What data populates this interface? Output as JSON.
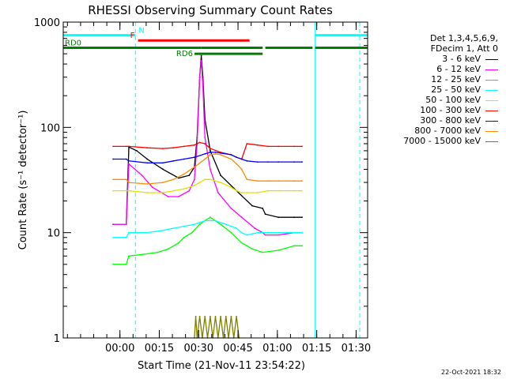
{
  "chart_data": {
    "type": "line",
    "title": "RHESSI Observing Summary Count Rates",
    "xlabel": "Start Time (21-Nov-11 23:54:22)",
    "ylabel": "Count Rate (s⁻¹ detector⁻¹)",
    "y_scale": "log",
    "ylim": [
      1,
      1000
    ],
    "y_ticks": [
      {
        "value": 1,
        "label": "1"
      },
      {
        "value": 10,
        "label": "10"
      },
      {
        "value": 100,
        "label": "100"
      },
      {
        "value": 1000,
        "label": "1000"
      }
    ],
    "xlim_minutes": [
      -16,
      100
    ],
    "x_ticks": [
      {
        "minute": 5.6,
        "label": "00:00"
      },
      {
        "minute": 20.6,
        "label": "00:15"
      },
      {
        "minute": 35.6,
        "label": "00:30"
      },
      {
        "minute": 50.6,
        "label": "00:45"
      },
      {
        "minute": 65.6,
        "label": "01:00"
      },
      {
        "minute": 80.6,
        "label": "01:15"
      },
      {
        "minute": 95.6,
        "label": "01:30"
      }
    ],
    "legend_header": [
      "Det 1,3,4,5,6,9,",
      "FDecim 1, Att 0"
    ],
    "series": [
      {
        "name": "3 - 6 keV",
        "color": "#000000",
        "points": [
          [
            3,
            12
          ],
          [
            8,
            12
          ],
          [
            9,
            65
          ],
          [
            12,
            60
          ],
          [
            16,
            50
          ],
          [
            22,
            40
          ],
          [
            28,
            33
          ],
          [
            32,
            35
          ],
          [
            34,
            42
          ],
          [
            35,
            80
          ],
          [
            36,
            300
          ],
          [
            36.6,
            480
          ],
          [
            37.2,
            300
          ],
          [
            38,
            120
          ],
          [
            40,
            60
          ],
          [
            44,
            35
          ],
          [
            50,
            25
          ],
          [
            56,
            18
          ],
          [
            60,
            17
          ],
          [
            61,
            15
          ],
          [
            66,
            14
          ],
          [
            72,
            14
          ],
          [
            75,
            14
          ]
        ]
      },
      {
        "name": "6 - 12 keV",
        "color": "#ff00ff",
        "points": [
          [
            3,
            12
          ],
          [
            8,
            12
          ],
          [
            9,
            45
          ],
          [
            14,
            35
          ],
          [
            18,
            27
          ],
          [
            24,
            22
          ],
          [
            28,
            22
          ],
          [
            32,
            25
          ],
          [
            34,
            32
          ],
          [
            35,
            70
          ],
          [
            36,
            300
          ],
          [
            36.6,
            430
          ],
          [
            37.2,
            250
          ],
          [
            38,
            80
          ],
          [
            40,
            40
          ],
          [
            43,
            24
          ],
          [
            48,
            17
          ],
          [
            52,
            14
          ],
          [
            57,
            11
          ],
          [
            60,
            10
          ],
          [
            61,
            9.5
          ],
          [
            66,
            9.5
          ],
          [
            72,
            10
          ],
          [
            75,
            10
          ]
        ]
      },
      {
        "name": "12 - 25 keV",
        "color": "#00ff00",
        "points": [
          [
            3,
            5
          ],
          [
            8,
            5
          ],
          [
            9,
            6
          ],
          [
            14,
            6.2
          ],
          [
            20,
            6.5
          ],
          [
            24,
            7
          ],
          [
            28,
            8
          ],
          [
            30,
            9
          ],
          [
            33,
            10
          ],
          [
            36,
            12
          ],
          [
            38,
            13
          ],
          [
            40,
            14
          ],
          [
            44,
            12
          ],
          [
            48,
            10
          ],
          [
            52,
            8
          ],
          [
            54,
            7.5
          ],
          [
            56,
            7
          ],
          [
            60,
            6.5
          ],
          [
            66,
            6.8
          ],
          [
            72,
            7.5
          ],
          [
            75,
            7.5
          ]
        ]
      },
      {
        "name": "25 - 50 keV",
        "color": "#00ffff",
        "points": [
          [
            3,
            9
          ],
          [
            8,
            9
          ],
          [
            9,
            10
          ],
          [
            16,
            10
          ],
          [
            22,
            10.5
          ],
          [
            26,
            11
          ],
          [
            30,
            11.5
          ],
          [
            34,
            12
          ],
          [
            38,
            13
          ],
          [
            42,
            13
          ],
          [
            46,
            12
          ],
          [
            50,
            11
          ],
          [
            52,
            10
          ],
          [
            54,
            9.5
          ],
          [
            58,
            10
          ],
          [
            62,
            10
          ],
          [
            66,
            10
          ],
          [
            72,
            10
          ],
          [
            75,
            10
          ]
        ]
      },
      {
        "name": "50 - 100 keV",
        "color": "#e0e000",
        "points": [
          [
            3,
            25
          ],
          [
            8,
            25
          ],
          [
            9,
            25
          ],
          [
            16,
            24
          ],
          [
            22,
            24
          ],
          [
            26,
            25
          ],
          [
            30,
            26
          ],
          [
            34,
            28
          ],
          [
            36,
            30
          ],
          [
            38,
            32
          ],
          [
            40,
            32
          ],
          [
            44,
            30
          ],
          [
            48,
            27
          ],
          [
            50,
            25
          ],
          [
            52,
            24
          ],
          [
            54,
            24
          ],
          [
            58,
            24
          ],
          [
            62,
            25
          ],
          [
            66,
            25
          ],
          [
            72,
            25
          ],
          [
            75,
            25
          ]
        ]
      },
      {
        "name": "100 - 300 keV",
        "color": "#ff0000",
        "points": [
          [
            3,
            66
          ],
          [
            8,
            66
          ],
          [
            9,
            66
          ],
          [
            16,
            64
          ],
          [
            22,
            63
          ],
          [
            26,
            64
          ],
          [
            30,
            66
          ],
          [
            34,
            68
          ],
          [
            36,
            72
          ],
          [
            38,
            70
          ],
          [
            40,
            63
          ],
          [
            44,
            58
          ],
          [
            48,
            55
          ],
          [
            50,
            52
          ],
          [
            52,
            50
          ],
          [
            54,
            70
          ],
          [
            58,
            68
          ],
          [
            62,
            66
          ],
          [
            66,
            66
          ],
          [
            72,
            66
          ],
          [
            75,
            66
          ]
        ]
      },
      {
        "name": "300 - 800 keV",
        "color": "#0000ff",
        "points": [
          [
            3,
            50
          ],
          [
            8,
            50
          ],
          [
            9,
            48
          ],
          [
            16,
            46
          ],
          [
            22,
            46
          ],
          [
            26,
            48
          ],
          [
            30,
            50
          ],
          [
            34,
            52
          ],
          [
            38,
            56
          ],
          [
            40,
            58
          ],
          [
            42,
            58
          ],
          [
            44,
            57
          ],
          [
            48,
            55
          ],
          [
            50,
            52
          ],
          [
            52,
            50
          ],
          [
            54,
            48
          ],
          [
            58,
            47
          ],
          [
            62,
            47
          ],
          [
            66,
            47
          ],
          [
            72,
            47
          ],
          [
            75,
            47
          ]
        ]
      },
      {
        "name": "800 - 7000 keV",
        "color": "#ff8c00",
        "points": [
          [
            3,
            32
          ],
          [
            8,
            32
          ],
          [
            9,
            30
          ],
          [
            16,
            29
          ],
          [
            22,
            30
          ],
          [
            26,
            32
          ],
          [
            30,
            36
          ],
          [
            34,
            42
          ],
          [
            38,
            50
          ],
          [
            40,
            55
          ],
          [
            42,
            56
          ],
          [
            44,
            55
          ],
          [
            48,
            50
          ],
          [
            50,
            45
          ],
          [
            52,
            40
          ],
          [
            54,
            32
          ],
          [
            58,
            31
          ],
          [
            62,
            31
          ],
          [
            66,
            31
          ],
          [
            72,
            31
          ],
          [
            75,
            31
          ]
        ]
      },
      {
        "name": "7000 - 15000 keV",
        "color": "#808000",
        "points": [
          [
            34,
            1
          ],
          [
            34.5,
            1.6
          ],
          [
            35,
            1
          ],
          [
            36,
            1.6
          ],
          [
            37,
            1
          ],
          [
            38,
            1.6
          ],
          [
            39,
            1
          ],
          [
            40,
            1.6
          ],
          [
            41,
            1
          ],
          [
            42,
            1.6
          ],
          [
            43,
            1
          ],
          [
            44,
            1.6
          ],
          [
            45,
            1
          ],
          [
            46,
            1.6
          ],
          [
            47,
            1
          ],
          [
            48,
            1.6
          ],
          [
            49,
            1
          ],
          [
            50,
            1.6
          ],
          [
            51,
            1
          ]
        ]
      }
    ],
    "flags": [
      {
        "label": "N",
        "color": "#00ffff",
        "level": 750,
        "segments": [
          [
            -16,
            11.5
          ],
          [
            80,
            100
          ]
        ]
      },
      {
        "label": "F",
        "color": "#ff0000",
        "level": 670,
        "segments": [
          [
            12.5,
            55
          ]
        ]
      },
      {
        "label": "RD0",
        "color": "#008000",
        "level": 570,
        "segments": [
          [
            -16,
            36.5
          ],
          [
            36.5,
            60
          ],
          [
            61,
            79
          ],
          [
            80,
            100
          ]
        ]
      },
      {
        "label": "RD6",
        "color": "#008000",
        "level": 500,
        "segments": [
          [
            34,
            60
          ]
        ]
      }
    ],
    "vlines": [
      {
        "minute": -16,
        "color": "#00ffff",
        "style": "solid"
      },
      {
        "minute": 11.5,
        "color": "#00ffff",
        "style": "dashed"
      },
      {
        "minute": 80,
        "color": "#00ffff",
        "style": "solid"
      },
      {
        "minute": 97,
        "color": "#00ffff",
        "style": "dashed"
      }
    ],
    "grid": false,
    "legend_position": "right"
  },
  "footer_date": "22-Oct-2021 18:32"
}
